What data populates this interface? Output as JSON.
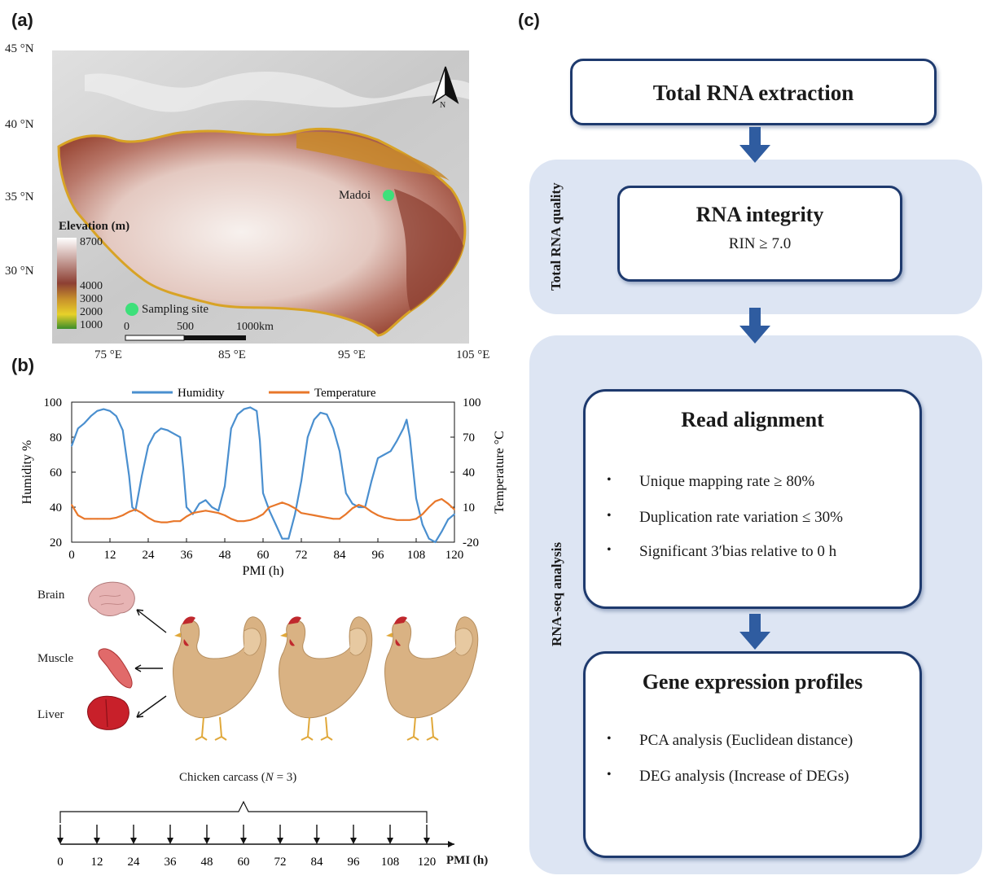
{
  "panel_labels": {
    "a": "(a)",
    "b": "(b)",
    "c": "(c)"
  },
  "map": {
    "lat_labels": [
      "45 °N",
      "40 °N",
      "35 °N",
      "30 °N"
    ],
    "lon_labels": [
      "75 °E",
      "85 °E",
      "95 °E",
      "105 °E"
    ],
    "site_label": "Madoi",
    "legend_title": "Elevation (m)",
    "legend_values": [
      "8700",
      "4000",
      "3000",
      "2000",
      "1000"
    ],
    "sampling_label": "Sampling site",
    "scale_labels": [
      "0",
      "500",
      "1000km"
    ],
    "north_label": "N",
    "colors": {
      "site": "#3de07a",
      "plateau_low": "#d9a227",
      "plateau_mid": "#a0523a",
      "plateau_high": "#f4eeea"
    }
  },
  "chart_data": {
    "type": "line",
    "title": "",
    "legend": [
      "Humidity",
      "Temperature"
    ],
    "legend_placement": "top",
    "xlabel": "PMI (h)",
    "ylabel_left": "Humidity %",
    "ylabel_right": "Temperature °C",
    "x_ticks": [
      0,
      12,
      24,
      36,
      48,
      60,
      72,
      84,
      96,
      108,
      120
    ],
    "y_left_ticks": [
      20,
      40,
      60,
      80,
      100
    ],
    "y_right_ticks": [
      -20,
      10,
      40,
      70,
      100
    ],
    "xlim": [
      0,
      120
    ],
    "ylim_left": [
      20,
      100
    ],
    "ylim_right": [
      -20,
      100
    ],
    "series": [
      {
        "name": "Humidity",
        "axis": "left",
        "color": "#4a8fcf",
        "x": [
          0,
          2,
          4,
          6,
          8,
          10,
          12,
          14,
          16,
          18,
          19,
          20,
          22,
          24,
          26,
          28,
          30,
          32,
          34,
          35,
          36,
          38,
          40,
          42,
          44,
          46,
          48,
          50,
          52,
          54,
          56,
          58,
          59,
          60,
          62,
          64,
          66,
          68,
          70,
          72,
          74,
          76,
          78,
          80,
          82,
          84,
          86,
          88,
          90,
          92,
          94,
          96,
          98,
          100,
          102,
          104,
          105,
          106,
          108,
          110,
          112,
          114,
          116,
          118,
          120
        ],
        "values": [
          75,
          85,
          88,
          92,
          95,
          96,
          95,
          92,
          84,
          58,
          40,
          38,
          58,
          75,
          82,
          85,
          84,
          82,
          80,
          62,
          40,
          36,
          42,
          44,
          40,
          38,
          52,
          85,
          93,
          96,
          97,
          95,
          78,
          48,
          38,
          30,
          22,
          22,
          36,
          55,
          80,
          90,
          94,
          93,
          85,
          72,
          48,
          42,
          40,
          40,
          55,
          68,
          70,
          72,
          78,
          85,
          90,
          80,
          45,
          30,
          22,
          20,
          26,
          33,
          36
        ]
      },
      {
        "name": "Temperature",
        "axis": "right",
        "color": "#e8772a",
        "x": [
          0,
          2,
          4,
          6,
          8,
          10,
          12,
          14,
          16,
          18,
          20,
          22,
          24,
          26,
          28,
          30,
          32,
          34,
          36,
          38,
          40,
          42,
          44,
          46,
          48,
          50,
          52,
          54,
          56,
          58,
          60,
          62,
          64,
          66,
          68,
          70,
          72,
          74,
          76,
          78,
          80,
          82,
          84,
          86,
          88,
          90,
          92,
          94,
          96,
          98,
          100,
          102,
          104,
          106,
          108,
          110,
          112,
          114,
          116,
          118,
          120
        ],
        "values": [
          12,
          3,
          0,
          0,
          0,
          0,
          0,
          1,
          3,
          6,
          8,
          5,
          1,
          -2,
          -3,
          -3,
          -2,
          -2,
          2,
          5,
          6,
          7,
          6,
          5,
          3,
          0,
          -2,
          -2,
          -1,
          1,
          4,
          10,
          12,
          14,
          12,
          9,
          5,
          4,
          3,
          2,
          1,
          0,
          0,
          4,
          9,
          12,
          10,
          6,
          3,
          1,
          0,
          -1,
          -1,
          -1,
          0,
          4,
          10,
          15,
          17,
          13,
          8
        ]
      }
    ]
  },
  "organs": {
    "brain": "Brain",
    "muscle": "Muscle",
    "liver": "Liver"
  },
  "timeline": {
    "caption_prefix": "Chicken carcass (",
    "caption_var": "N",
    "caption_suffix": " = 3)",
    "ticks": [
      "0",
      "12",
      "24",
      "36",
      "48",
      "60",
      "72",
      "84",
      "96",
      "108",
      "120"
    ],
    "axis_label": "PMI (h)"
  },
  "flow": {
    "step1_title": "Total RNA extraction",
    "region1_label": "Total RNA quality",
    "step2_title": "RNA integrity",
    "step2_sub": "RIN ≥ 7.0",
    "region2_label": "RNA-seq analysis",
    "step3_title": "Read alignment",
    "step3_items": [
      "Unique mapping rate ≥ 80%",
      "Duplication rate variation ≤ 30%",
      "Significant 3′bias relative to 0 h"
    ],
    "step4_title": "Gene expression profiles",
    "step4_items": [
      "PCA analysis (Euclidean distance)",
      "DEG analysis (Increase of DEGs)"
    ],
    "colors": {
      "box_border": "#1e3a6e",
      "region_fill": "#dde5f3",
      "arrow": "#2f5ca0"
    }
  }
}
